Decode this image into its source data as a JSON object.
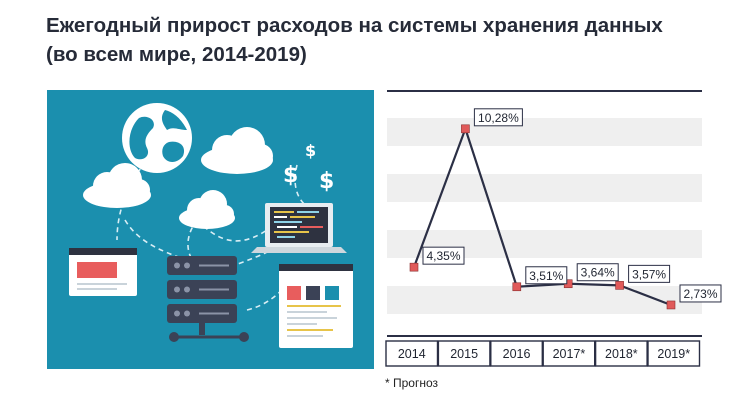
{
  "header": {
    "title_line1": "Ежегодный прирост расходов на системы хранения данных",
    "title_line2": "(во всем мире, 2014-2019)"
  },
  "illustration": {
    "background_color": "#1b8fae",
    "icons": [
      "globe-icon",
      "cloud-icon",
      "dollar-icon",
      "laptop-icon",
      "browser-window-icon",
      "server-rack-icon",
      "dashboard-window-icon"
    ]
  },
  "chart_data": {
    "type": "line",
    "categories": [
      "2014",
      "2015",
      "2016",
      "2017*",
      "2018*",
      "2019*"
    ],
    "values": [
      4.35,
      10.28,
      3.51,
      3.64,
      3.57,
      2.73
    ],
    "data_labels": [
      "4,35%",
      "10,28%",
      "3,51%",
      "3,64%",
      "3,57%",
      "2,73%"
    ],
    "title": "",
    "xlabel": "",
    "ylabel": "",
    "ylim": [
      2,
      11
    ],
    "grid": "horizontal bands",
    "line_color": "#2b2f45",
    "marker_color": "#e05a5a"
  },
  "footnote": "* Прогноз"
}
